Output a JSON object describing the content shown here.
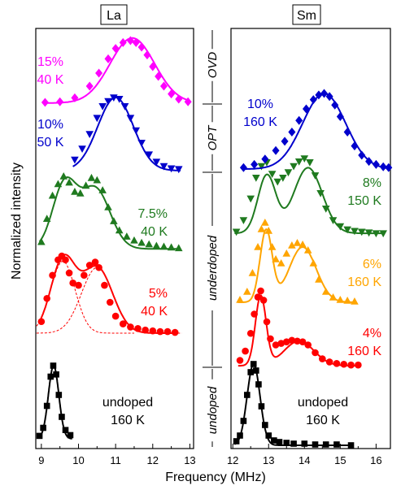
{
  "chart_data": {
    "type": "scatter",
    "xlabel": "Frequency (MHz)",
    "ylabel": "Normalized intensity",
    "panels": [
      {
        "title": "La",
        "xlim": [
          8.85,
          13.1
        ],
        "xticks": [
          9,
          10,
          11,
          12,
          13
        ],
        "series": [
          {
            "label_pct": "undoped",
            "label_temp": "160 K",
            "color": "#000000",
            "marker": "square",
            "gauss_tail": [
              12.0,
              12.1
            ],
            "x": [
              8.95,
              9.05,
              9.15,
              9.25,
              9.32,
              9.4,
              9.47,
              9.55,
              9.65,
              9.78
            ],
            "y": [
              0.04,
              0.15,
              0.45,
              0.85,
              1.0,
              0.88,
              0.6,
              0.3,
              0.12,
              0.05
            ],
            "peaks": [
              {
                "c": 9.33,
                "a": 1.0,
                "s": 0.14
              }
            ],
            "baseline": 0.0
          },
          {
            "label_pct": "5%",
            "label_temp": "40 K",
            "color": "#ff0000",
            "marker": "circle",
            "show_components": true,
            "x": [
              9.0,
              9.15,
              9.3,
              9.45,
              9.55,
              9.65,
              9.75,
              9.85,
              10.0,
              10.15,
              10.3,
              10.45,
              10.55,
              10.7,
              10.85,
              11.0,
              11.2,
              11.4,
              11.6,
              11.8,
              12.0,
              12.2,
              12.4,
              12.6
            ],
            "y": [
              0.15,
              0.45,
              0.75,
              0.95,
              1.0,
              0.95,
              0.78,
              0.65,
              0.62,
              0.75,
              0.88,
              0.92,
              0.85,
              0.62,
              0.4,
              0.22,
              0.12,
              0.08,
              0.06,
              0.04,
              0.03,
              0.02,
              0.02,
              0.01
            ],
            "peaks": [
              {
                "c": 9.58,
                "a": 0.93,
                "s": 0.33
              },
              {
                "c": 10.5,
                "a": 0.85,
                "s": 0.42
              }
            ],
            "baseline": 0.0
          },
          {
            "label_pct": "7.5%",
            "label_temp": "40 K",
            "color": "#1f7a1f",
            "marker": "triangle-up",
            "x": [
              9.0,
              9.15,
              9.3,
              9.45,
              9.6,
              9.75,
              9.9,
              10.05,
              10.2,
              10.35,
              10.5,
              10.65,
              10.8,
              10.95,
              11.1,
              11.3,
              11.5,
              11.7,
              11.9,
              12.1,
              12.3,
              12.5,
              12.7
            ],
            "y": [
              0.15,
              0.45,
              0.75,
              0.9,
              1.0,
              0.92,
              0.8,
              0.78,
              0.88,
              0.98,
              0.95,
              0.82,
              0.6,
              0.42,
              0.3,
              0.22,
              0.17,
              0.14,
              0.12,
              0.1,
              0.09,
              0.08,
              0.07
            ],
            "peaks": [
              {
                "c": 9.62,
                "a": 0.82,
                "s": 0.32
              },
              {
                "c": 10.45,
                "a": 0.78,
                "s": 0.4
              }
            ],
            "baseline": 0.06
          },
          {
            "label_pct": "10%",
            "label_temp": "50 K",
            "color": "#0000cc",
            "marker": "triangle-down",
            "x": [
              9.9,
              10.1,
              10.3,
              10.5,
              10.65,
              10.8,
              10.95,
              11.1,
              11.25,
              11.4,
              11.55,
              11.7,
              11.9,
              12.1,
              12.3,
              12.5,
              12.7
            ],
            "y": [
              0.15,
              0.3,
              0.5,
              0.72,
              0.88,
              0.95,
              1.0,
              0.98,
              0.88,
              0.72,
              0.55,
              0.38,
              0.22,
              0.12,
              0.06,
              0.03,
              0.02
            ],
            "peaks": [
              {
                "c": 11.0,
                "a": 1.0,
                "s": 0.48
              }
            ],
            "baseline": 0.0
          },
          {
            "label_pct": "15%",
            "label_temp": "40 K",
            "color": "#ff00ff",
            "marker": "diamond",
            "x": [
              9.1,
              9.5,
              9.9,
              10.3,
              10.55,
              10.8,
              11.0,
              11.2,
              11.4,
              11.55,
              11.7,
              11.85,
              12.0,
              12.15,
              12.3,
              12.5,
              12.7,
              12.95
            ],
            "y": [
              0.05,
              0.06,
              0.12,
              0.3,
              0.5,
              0.72,
              0.88,
              0.97,
              1.0,
              0.97,
              0.9,
              0.78,
              0.6,
              0.45,
              0.3,
              0.18,
              0.1,
              0.06
            ],
            "peaks": [
              {
                "c": 11.45,
                "a": 1.0,
                "s": 0.6
              }
            ],
            "baseline": 0.04
          }
        ]
      },
      {
        "title": "Sm",
        "xlim": [
          11.95,
          16.4
        ],
        "xticks": [
          12,
          13,
          14,
          15,
          16
        ],
        "series": [
          {
            "label_pct": "undoped",
            "label_temp": "160 K",
            "color": "#000000",
            "marker": "square",
            "x": [
              12.1,
              12.2,
              12.3,
              12.4,
              12.5,
              12.58,
              12.65,
              12.72,
              12.8,
              12.9,
              13.0,
              13.15,
              13.3,
              13.5,
              13.7,
              14.0,
              14.3,
              14.6,
              14.9,
              15.3
            ],
            "y": [
              0.05,
              0.12,
              0.3,
              0.62,
              0.9,
              1.0,
              0.92,
              0.75,
              0.48,
              0.25,
              0.12,
              0.06,
              0.04,
              0.03,
              0.02,
              0.02,
              0.01,
              0.01,
              0.01,
              0.0
            ],
            "peaks": [
              {
                "c": 12.58,
                "a": 1.0,
                "s": 0.18
              }
            ],
            "baseline": 0.0
          },
          {
            "label_pct": "4%",
            "label_temp": "160 K",
            "color": "#ff0000",
            "marker": "circle",
            "x": [
              12.2,
              12.35,
              12.5,
              12.6,
              12.7,
              12.78,
              12.86,
              12.95,
              13.05,
              13.2,
              13.35,
              13.5,
              13.65,
              13.8,
              13.95,
              14.1,
              14.3,
              14.5,
              14.7,
              14.9,
              15.1,
              15.3,
              15.5
            ],
            "y": [
              0.1,
              0.22,
              0.45,
              0.7,
              0.92,
              1.0,
              0.88,
              0.6,
              0.38,
              0.3,
              0.32,
              0.34,
              0.36,
              0.35,
              0.34,
              0.3,
              0.2,
              0.12,
              0.08,
              0.06,
              0.05,
              0.04,
              0.04
            ],
            "peaks": [
              {
                "c": 12.78,
                "a": 0.9,
                "s": 0.15
              },
              {
                "c": 13.85,
                "a": 0.32,
                "s": 0.42
              }
            ],
            "baseline": 0.03
          },
          {
            "label_pct": "6%",
            "label_temp": "160 K",
            "color": "#ffa500",
            "marker": "triangle-up",
            "x": [
              12.2,
              12.4,
              12.55,
              12.7,
              12.8,
              12.9,
              13.0,
              13.1,
              13.2,
              13.35,
              13.5,
              13.65,
              13.8,
              13.95,
              14.1,
              14.25,
              14.4,
              14.6,
              14.8,
              15.0,
              15.2,
              15.4
            ],
            "y": [
              0.05,
              0.15,
              0.38,
              0.7,
              0.92,
              1.0,
              0.9,
              0.7,
              0.55,
              0.5,
              0.62,
              0.72,
              0.75,
              0.73,
              0.66,
              0.5,
              0.3,
              0.15,
              0.08,
              0.05,
              0.04,
              0.03
            ],
            "peaks": [
              {
                "c": 12.93,
                "a": 0.88,
                "s": 0.17
              },
              {
                "c": 13.95,
                "a": 0.68,
                "s": 0.38
              }
            ],
            "baseline": 0.02
          },
          {
            "label_pct": "8%",
            "label_temp": "150 K",
            "color": "#1f7a1f",
            "marker": "triangle-down",
            "x": [
              12.1,
              12.3,
              12.5,
              12.65,
              12.8,
              12.95,
              13.1,
              13.25,
              13.4,
              13.55,
              13.7,
              13.85,
              14.0,
              14.15,
              14.3,
              14.45,
              14.6,
              14.8,
              15.0,
              15.2,
              15.4,
              15.6,
              15.8,
              16.0,
              16.2
            ],
            "y": [
              0.05,
              0.2,
              0.48,
              0.75,
              0.9,
              0.95,
              0.8,
              0.7,
              0.75,
              0.82,
              0.9,
              0.96,
              1.0,
              0.95,
              0.78,
              0.55,
              0.35,
              0.2,
              0.12,
              0.08,
              0.06,
              0.05,
              0.04,
              0.03,
              0.03
            ],
            "peaks": [
              {
                "c": 12.95,
                "a": 0.75,
                "s": 0.25
              },
              {
                "c": 14.1,
                "a": 0.85,
                "s": 0.4
              }
            ],
            "baseline": 0.03
          },
          {
            "label_pct": "10%",
            "label_temp": "160 K",
            "color": "#0000cc",
            "marker": "diamond",
            "x": [
              12.3,
              12.6,
              12.9,
              13.2,
              13.45,
              13.65,
              13.85,
              14.05,
              14.25,
              14.4,
              14.55,
              14.7,
              14.85,
              15.0,
              15.2,
              15.4,
              15.6,
              15.8,
              16.0,
              16.2,
              16.35
            ],
            "y": [
              0.04,
              0.08,
              0.15,
              0.26,
              0.38,
              0.5,
              0.65,
              0.8,
              0.92,
              0.98,
              1.0,
              0.96,
              0.85,
              0.7,
              0.5,
              0.32,
              0.2,
              0.12,
              0.08,
              0.05,
              0.04
            ],
            "peaks": [
              {
                "c": 14.55,
                "a": 0.98,
                "s": 0.6
              }
            ],
            "baseline": 0.02
          }
        ]
      }
    ],
    "regions": [
      "undoped",
      "underdoped",
      "OPT",
      "OVD"
    ]
  }
}
